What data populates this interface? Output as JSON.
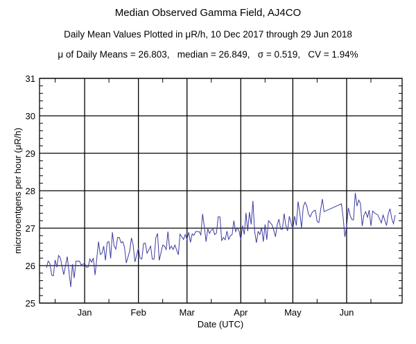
{
  "chart_data": {
    "type": "line",
    "title": "Median Observed Gamma Field, AJ4CO",
    "subtitle": "Daily Mean Values Plotted in μR/h, 10 Dec 2017 through 29 Jun 2018",
    "stats_line": "μ of Daily Means = 26.803,   median = 26.849,   σ = 0.519,   CV = 1.94%",
    "xlabel": "Date (UTC)",
    "ylabel": "microroentgens per hour (μR/h)",
    "x_units": "days since 10 Dec 2017",
    "xlim": [
      -4,
      205
    ],
    "ylim": [
      25,
      31
    ],
    "yticks": [
      25,
      26,
      27,
      28,
      29,
      30,
      31
    ],
    "ytick_labels": [
      "25",
      "26",
      "27",
      "28",
      "29",
      "30",
      "31"
    ],
    "y_minor_step": 0.2,
    "xticks": [
      22,
      53,
      81,
      112,
      142,
      173
    ],
    "xtick_labels": [
      "Jan",
      "Feb",
      "Mar",
      "Apr",
      "May",
      "Jun"
    ],
    "x_minor_ticks": [
      5,
      36,
      67,
      95,
      126,
      156,
      187
    ],
    "grid": true,
    "line_color": "#3a3aa0",
    "series": [
      {
        "name": "Daily mean",
        "points": [
          [
            0,
            25.94
          ],
          [
            1,
            26.12
          ],
          [
            2,
            26.06
          ],
          [
            3,
            25.75
          ],
          [
            4,
            25.73
          ],
          [
            5,
            26.15
          ],
          [
            6,
            25.96
          ],
          [
            7,
            26.27
          ],
          [
            8,
            26.21
          ],
          [
            10,
            25.76
          ],
          [
            12,
            26.24
          ],
          [
            14,
            25.43
          ],
          [
            15,
            26.04
          ],
          [
            16,
            25.67
          ],
          [
            17,
            26.12
          ],
          [
            19,
            26.12
          ],
          [
            20,
            26.02
          ],
          [
            22,
            26.06
          ],
          [
            23,
            25.96
          ],
          [
            24,
            25.96
          ],
          [
            25,
            26.18
          ],
          [
            26,
            26.09
          ],
          [
            27,
            26.2
          ],
          [
            28,
            25.75
          ],
          [
            30,
            26.64
          ],
          [
            31,
            26.3
          ],
          [
            32,
            26.33
          ],
          [
            33,
            26.52
          ],
          [
            34,
            26.14
          ],
          [
            35,
            26.62
          ],
          [
            36,
            26.64
          ],
          [
            37,
            26.19
          ],
          [
            38,
            26.89
          ],
          [
            39,
            26.52
          ],
          [
            40,
            26.44
          ],
          [
            41,
            26.75
          ],
          [
            42,
            26.75
          ],
          [
            43,
            26.61
          ],
          [
            44,
            26.64
          ],
          [
            45,
            26.49
          ],
          [
            46,
            26.07
          ],
          [
            48,
            26.39
          ],
          [
            49,
            26.74
          ],
          [
            50,
            26.55
          ],
          [
            51,
            26.1
          ],
          [
            53,
            26.47
          ],
          [
            54,
            26.19
          ],
          [
            55,
            26.18
          ],
          [
            56,
            26.59
          ],
          [
            57,
            26.6
          ],
          [
            58,
            26.33
          ],
          [
            60,
            26.52
          ],
          [
            61,
            26.17
          ],
          [
            62,
            26.17
          ],
          [
            63,
            26.74
          ],
          [
            64,
            26.86
          ],
          [
            65,
            26.14
          ],
          [
            67,
            26.55
          ],
          [
            68,
            26.52
          ],
          [
            69,
            26.43
          ],
          [
            70,
            26.91
          ],
          [
            71,
            26.44
          ],
          [
            72,
            26.52
          ],
          [
            73,
            26.43
          ],
          [
            74,
            26.55
          ],
          [
            76,
            26.29
          ],
          [
            77,
            26.84
          ],
          [
            78,
            26.77
          ],
          [
            79,
            26.7
          ],
          [
            80,
            26.83
          ],
          [
            81,
            26.7
          ],
          [
            82,
            26.89
          ],
          [
            83,
            26.62
          ],
          [
            84,
            26.85
          ],
          [
            85,
            26.81
          ],
          [
            86,
            26.91
          ],
          [
            88,
            26.91
          ],
          [
            89,
            26.82
          ],
          [
            90,
            27.38
          ],
          [
            91,
            27.04
          ],
          [
            92,
            26.64
          ],
          [
            93,
            26.98
          ],
          [
            94,
            26.86
          ],
          [
            95,
            26.95
          ],
          [
            96,
            26.97
          ],
          [
            97,
            26.83
          ],
          [
            98,
            26.87
          ],
          [
            99,
            27.3
          ],
          [
            100,
            27.3
          ],
          [
            101,
            26.67
          ],
          [
            102,
            26.75
          ],
          [
            103,
            26.69
          ],
          [
            104,
            26.92
          ],
          [
            105,
            26.7
          ],
          [
            106,
            26.8
          ],
          [
            107,
            26.83
          ],
          [
            108,
            27.2
          ],
          [
            109,
            26.91
          ],
          [
            110,
            27.01
          ],
          [
            111,
            26.92
          ],
          [
            112,
            26.69
          ],
          [
            113,
            27.07
          ],
          [
            114,
            26.83
          ],
          [
            115,
            27.41
          ],
          [
            116,
            26.92
          ],
          [
            117,
            27.43
          ],
          [
            118,
            27.1
          ],
          [
            119,
            27.73
          ],
          [
            120,
            26.91
          ],
          [
            121,
            26.61
          ],
          [
            122,
            26.91
          ],
          [
            123,
            26.83
          ],
          [
            124,
            27.02
          ],
          [
            125,
            26.64
          ],
          [
            126,
            27.1
          ],
          [
            127,
            26.69
          ],
          [
            128,
            27.2
          ],
          [
            130,
            27.09
          ],
          [
            131,
            26.95
          ],
          [
            132,
            26.77
          ],
          [
            133,
            27.09
          ],
          [
            134,
            27.24
          ],
          [
            135,
            26.98
          ],
          [
            136,
            26.97
          ],
          [
            137,
            27.39
          ],
          [
            138,
            27.07
          ],
          [
            139,
            26.93
          ],
          [
            140,
            27.32
          ],
          [
            141,
            27.14
          ],
          [
            142,
            26.98
          ],
          [
            143,
            27.32
          ],
          [
            144,
            27.07
          ],
          [
            145,
            27.71
          ],
          [
            146,
            27.41
          ],
          [
            147,
            27.01
          ],
          [
            148,
            27.57
          ],
          [
            149,
            27.69
          ],
          [
            150,
            27.6
          ],
          [
            151,
            27.38
          ],
          [
            152,
            27.3
          ],
          [
            153,
            27.41
          ],
          [
            154,
            27.46
          ],
          [
            155,
            27.48
          ],
          [
            156,
            27.18
          ],
          [
            157,
            27.15
          ],
          [
            158,
            27.48
          ],
          [
            159,
            27.78
          ],
          [
            160,
            27.44
          ],
          [
            170,
            27.65
          ],
          [
            171,
            27.29
          ],
          [
            172,
            26.77
          ],
          [
            173,
            27.04
          ],
          [
            174,
            27.54
          ],
          [
            175,
            27.35
          ],
          [
            176,
            27.23
          ],
          [
            177,
            27.22
          ],
          [
            178,
            27.94
          ],
          [
            179,
            27.59
          ],
          [
            180,
            27.75
          ],
          [
            181,
            27.66
          ],
          [
            182,
            27.06
          ],
          [
            183,
            27.35
          ],
          [
            184,
            27.44
          ],
          [
            185,
            27.29
          ],
          [
            186,
            27.48
          ],
          [
            187,
            27.06
          ],
          [
            188,
            27.46
          ],
          [
            189,
            27.41
          ],
          [
            190,
            27.38
          ],
          [
            191,
            27.35
          ],
          [
            193,
            27.14
          ],
          [
            194,
            27.35
          ],
          [
            196,
            27.07
          ],
          [
            197,
            27.38
          ],
          [
            198,
            27.52
          ],
          [
            199,
            27.26
          ],
          [
            200,
            27.12
          ],
          [
            201,
            27.35
          ]
        ]
      }
    ]
  }
}
